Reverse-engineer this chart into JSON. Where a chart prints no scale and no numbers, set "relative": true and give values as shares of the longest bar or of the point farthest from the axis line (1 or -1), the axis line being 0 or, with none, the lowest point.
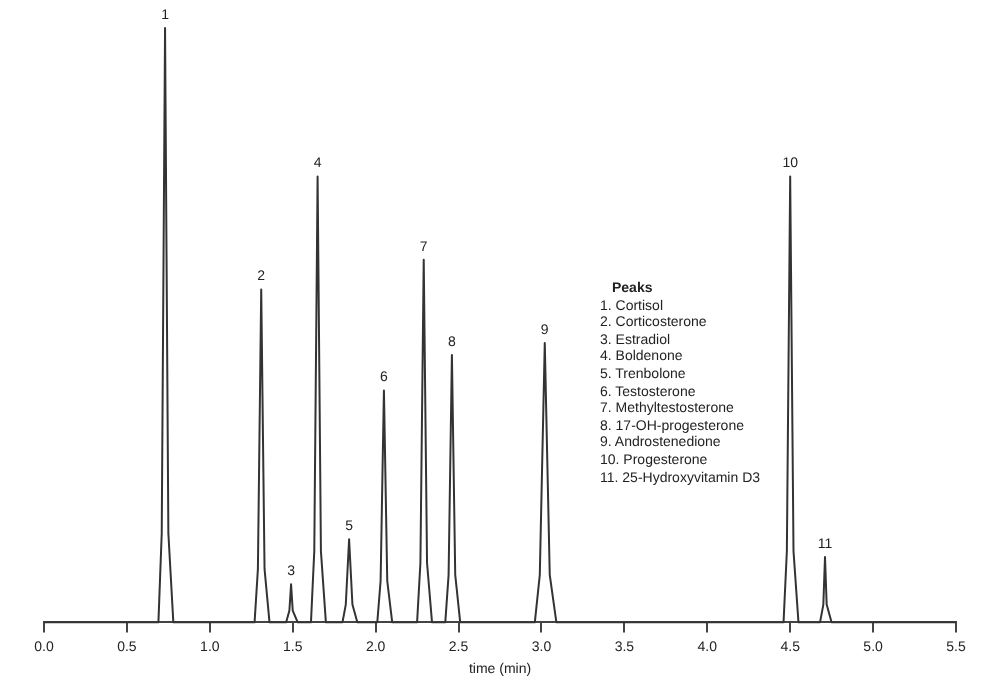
{
  "chart_data": {
    "type": "line",
    "relative": true,
    "xlabel": "time (min)",
    "legend": false,
    "grid": false,
    "marker": "none",
    "line_style": "solid",
    "xlim": [
      0,
      5.5
    ],
    "xticks": [
      {
        "value": 0,
        "label": "0.0"
      },
      0.5,
      {
        "value": 1,
        "label": "1.0"
      },
      1.5,
      {
        "value": 2,
        "label": "2.0"
      },
      2.5,
      {
        "value": 3,
        "label": "3.0"
      },
      3.5,
      {
        "value": 4,
        "label": "4.0"
      },
      4.5,
      {
        "value": 5,
        "label": "5.0"
      },
      5.5
    ],
    "series": [
      {
        "color": "#333333",
        "x": [
          0,
          0.69,
          0.71,
          0.73,
          0.75,
          0.78,
          1.27,
          1.29,
          1.31,
          1.33,
          1.36,
          1.46,
          1.48,
          1.49,
          1.5,
          1.53,
          1.61,
          1.63,
          1.65,
          1.67,
          1.7,
          1.8,
          1.82,
          1.84,
          1.86,
          1.89,
          2.01,
          2.03,
          2.05,
          2.07,
          2.1,
          2.25,
          2.27,
          2.29,
          2.31,
          2.34,
          2.42,
          2.44,
          2.46,
          2.48,
          2.51,
          2.96,
          2.99,
          3.02,
          3.05,
          3.09,
          4.46,
          4.48,
          4.5,
          4.52,
          4.55,
          4.68,
          4.7,
          4.71,
          4.72,
          4.75,
          5.5
        ],
        "values": [
          0,
          0,
          0.15,
          1,
          0.15,
          0,
          0,
          0.09,
          0.56,
          0.09,
          0,
          0,
          0.02,
          0.064,
          0.02,
          0,
          0,
          0.12,
          0.75,
          0.12,
          0,
          0,
          0.03,
          0.14,
          0.03,
          0,
          0,
          0.07,
          0.39,
          0.07,
          0,
          0,
          0.1,
          0.61,
          0.1,
          0,
          0,
          0.08,
          0.45,
          0.08,
          0,
          0,
          0.08,
          0.47,
          0.08,
          0,
          0,
          0.12,
          0.75,
          0.12,
          0,
          0,
          0.03,
          0.11,
          0.03,
          0,
          0
        ]
      }
    ],
    "annotations": [
      {
        "text": "1",
        "x": 0.73,
        "y": 1
      },
      {
        "text": "2",
        "x": 1.31,
        "y": 0.56
      },
      {
        "text": "3",
        "x": 1.49,
        "y": 0.064
      },
      {
        "text": "4",
        "x": 1.65,
        "y": 0.75
      },
      {
        "text": "5",
        "x": 1.84,
        "y": 0.14
      },
      {
        "text": "6",
        "x": 2.05,
        "y": 0.39
      },
      {
        "text": "7",
        "x": 2.29,
        "y": 0.61
      },
      {
        "text": "8",
        "x": 2.46,
        "y": 0.45
      },
      {
        "text": "9",
        "x": 3.02,
        "y": 0.47
      },
      {
        "text": "10",
        "x": 4.5,
        "y": 0.75
      },
      {
        "text": "11",
        "x": 4.71,
        "y": 0.11
      },
      "Peaks",
      "1. Cortisol",
      "2. Corticosterone",
      "3. Estradiol",
      "4. Boldenone",
      "5. Trenbolone",
      "6. Testosterone",
      "7. Methyltestosterone",
      "8. 17-OH-progesterone",
      "9. Androstenedione",
      "10. Progesterone",
      "11. 25-Hydroxyvitamin D3"
    ]
  }
}
